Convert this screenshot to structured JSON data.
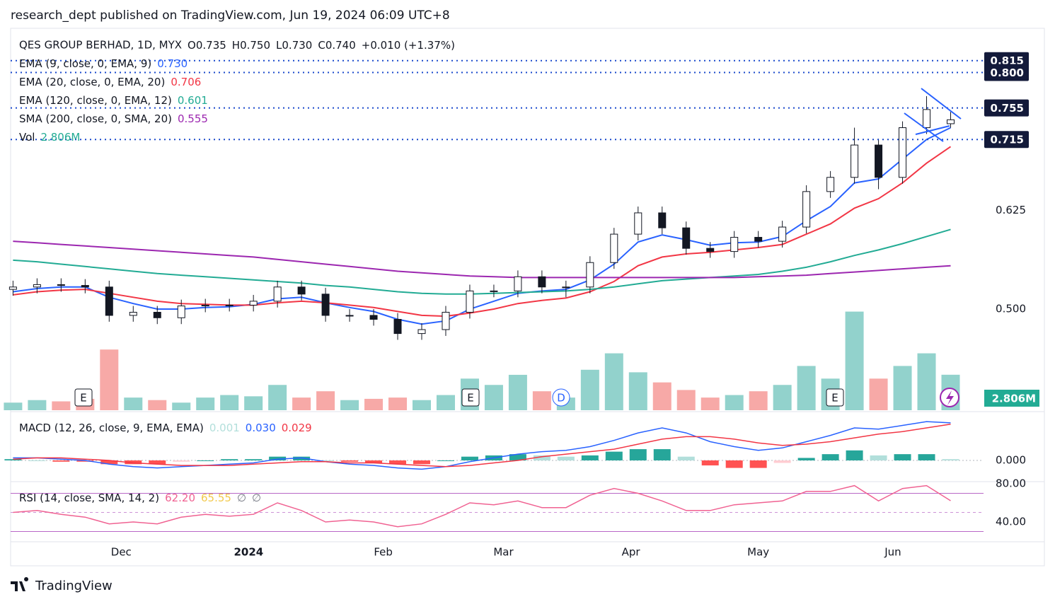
{
  "header": "research_dept published on TradingView.com, Jun 19, 2024 06:09 UTC+8",
  "footer": "TradingView",
  "chart_data": {
    "type": "candlestick",
    "symbol": "QES GROUP BERHAD, 1D, MYX",
    "ohlc_legend": [
      "O0.735",
      "H0.750",
      "L0.730",
      "C0.740",
      "+0.010 (+1.37%)"
    ],
    "open": [
      0.525,
      0.528,
      0.531,
      0.53,
      0.528,
      0.492,
      0.496,
      0.489,
      0.504,
      0.505,
      0.505,
      0.51,
      0.528,
      0.519,
      0.492,
      0.492,
      0.487,
      0.469,
      0.474,
      0.496,
      0.523,
      0.523,
      0.541,
      0.528,
      0.528,
      0.559,
      0.595,
      0.622,
      0.603,
      0.577,
      0.573,
      0.591,
      0.586,
      0.604,
      0.649,
      0.667,
      0.708,
      0.667,
      0.73,
      0.735
    ],
    "high": [
      0.536,
      0.539,
      0.539,
      0.538,
      0.536,
      0.504,
      0.504,
      0.512,
      0.513,
      0.513,
      0.518,
      0.536,
      0.536,
      0.527,
      0.5,
      0.5,
      0.495,
      0.482,
      0.504,
      0.531,
      0.531,
      0.549,
      0.549,
      0.536,
      0.567,
      0.603,
      0.63,
      0.63,
      0.611,
      0.585,
      0.599,
      0.599,
      0.612,
      0.657,
      0.675,
      0.73,
      0.716,
      0.738,
      0.77,
      0.75
    ],
    "low": [
      0.517,
      0.52,
      0.522,
      0.52,
      0.484,
      0.484,
      0.481,
      0.481,
      0.496,
      0.497,
      0.497,
      0.502,
      0.511,
      0.484,
      0.484,
      0.479,
      0.461,
      0.461,
      0.466,
      0.488,
      0.515,
      0.515,
      0.52,
      0.515,
      0.52,
      0.551,
      0.587,
      0.595,
      0.569,
      0.565,
      0.565,
      0.578,
      0.578,
      0.596,
      0.641,
      0.659,
      0.652,
      0.659,
      0.722,
      0.73
    ],
    "close": [
      0.528,
      0.531,
      0.53,
      0.528,
      0.492,
      0.496,
      0.489,
      0.504,
      0.505,
      0.505,
      0.51,
      0.528,
      0.519,
      0.492,
      0.492,
      0.487,
      0.469,
      0.474,
      0.496,
      0.523,
      0.523,
      0.541,
      0.528,
      0.528,
      0.559,
      0.595,
      0.622,
      0.603,
      0.577,
      0.573,
      0.591,
      0.586,
      0.604,
      0.649,
      0.667,
      0.708,
      0.667,
      0.73,
      0.753,
      0.74
    ],
    "up_color": "#ffffff",
    "down_color": "#131722",
    "ylim": [
      0.37,
      0.856
    ],
    "yticks": [
      0.625,
      {
        "value": 0.5,
        "label": "0.500"
      }
    ],
    "xlim": [
      -0.1,
      42.9
    ],
    "xticks": [
      {
        "value": 4.5,
        "label": "Dec"
      },
      {
        "value": 9.8,
        "label": "2024"
      },
      {
        "value": 15.4,
        "label": "Feb"
      },
      {
        "value": 20.4,
        "label": "Mar"
      },
      {
        "value": 25.7,
        "label": "Apr"
      },
      {
        "value": 31.0,
        "label": "May"
      },
      {
        "value": 36.6,
        "label": "Jun"
      }
    ],
    "series": [
      {
        "name": "EMA (9, close, 0, EMA, 9)",
        "value_label": "0.730",
        "color": "#2962ff",
        "values": [
          0.522,
          0.526,
          0.528,
          0.528,
          0.515,
          0.507,
          0.5,
          0.5,
          0.502,
          0.503,
          0.506,
          0.513,
          0.515,
          0.508,
          0.502,
          0.497,
          0.487,
          0.481,
          0.485,
          0.5,
          0.51,
          0.52,
          0.523,
          0.525,
          0.537,
          0.557,
          0.585,
          0.594,
          0.588,
          0.581,
          0.584,
          0.585,
          0.592,
          0.612,
          0.63,
          0.66,
          0.665,
          0.69,
          0.715,
          0.73
        ]
      },
      {
        "name": "EMA (20, close, 0, EMA, 20)",
        "value_label": "0.706",
        "color": "#f23645",
        "values": [
          0.518,
          0.522,
          0.524,
          0.525,
          0.52,
          0.515,
          0.51,
          0.507,
          0.506,
          0.505,
          0.505,
          0.508,
          0.51,
          0.508,
          0.505,
          0.502,
          0.497,
          0.492,
          0.491,
          0.495,
          0.5,
          0.507,
          0.511,
          0.514,
          0.522,
          0.535,
          0.555,
          0.566,
          0.57,
          0.572,
          0.575,
          0.578,
          0.582,
          0.595,
          0.608,
          0.628,
          0.64,
          0.66,
          0.685,
          0.706
        ]
      },
      {
        "name": "EMA (120, close, 0, EMA, 12)",
        "value_label": "0.601",
        "color": "#22ab94",
        "values": [
          0.562,
          0.56,
          0.557,
          0.554,
          0.551,
          0.548,
          0.545,
          0.543,
          0.541,
          0.539,
          0.537,
          0.535,
          0.533,
          0.53,
          0.528,
          0.525,
          0.522,
          0.52,
          0.519,
          0.519,
          0.52,
          0.521,
          0.522,
          0.523,
          0.525,
          0.528,
          0.532,
          0.536,
          0.538,
          0.54,
          0.542,
          0.544,
          0.548,
          0.553,
          0.56,
          0.568,
          0.575,
          0.583,
          0.592,
          0.601
        ]
      },
      {
        "name": "SMA (200, close, 0, SMA, 20)",
        "value_label": "0.555",
        "color": "#9c27b0",
        "values": [
          0.586,
          0.584,
          0.582,
          0.58,
          0.578,
          0.576,
          0.574,
          0.572,
          0.57,
          0.568,
          0.566,
          0.563,
          0.56,
          0.557,
          0.554,
          0.551,
          0.548,
          0.546,
          0.544,
          0.542,
          0.541,
          0.54,
          0.54,
          0.54,
          0.54,
          0.54,
          0.54,
          0.54,
          0.54,
          0.54,
          0.54,
          0.541,
          0.542,
          0.543,
          0.545,
          0.547,
          0.549,
          0.551,
          0.553,
          0.555
        ]
      }
    ],
    "price_lines": [
      {
        "value": 0.815,
        "label": "0.815"
      },
      {
        "value": 0.8,
        "label": "0.800"
      },
      {
        "value": 0.755,
        "label": "0.755"
      },
      {
        "value": 0.715,
        "label": "0.715"
      }
    ],
    "volume": {
      "name": "Vol",
      "value_label": "2.806M",
      "ylim": [
        0,
        8
      ],
      "up_color": "#92d2cc",
      "down_color": "#f7a9a7",
      "values": [
        0.6,
        0.8,
        0.7,
        0.9,
        4.8,
        1.0,
        0.8,
        0.6,
        1.0,
        1.2,
        1.1,
        2.0,
        1.0,
        1.5,
        0.8,
        0.9,
        1.0,
        0.8,
        1.2,
        2.5,
        2.0,
        2.8,
        1.5,
        1.0,
        3.2,
        4.5,
        3.0,
        2.2,
        1.6,
        1.0,
        1.2,
        1.5,
        2.0,
        3.5,
        2.5,
        7.8,
        2.5,
        3.5,
        4.5,
        2.806
      ]
    },
    "events": [
      "E",
      "E",
      "D",
      "E"
    ],
    "macd": {
      "name": "MACD (12, 26, close, 9, EMA, EMA)",
      "ylim": [
        -0.0164,
        0.0373
      ],
      "yticks": [
        {
          "value": 0,
          "label": "0.000"
        }
      ],
      "histogram": {
        "value_label": "0.001",
        "color": "#26a69a",
        "light_color": "#b2dfdb",
        "neg_color": "#ff5252",
        "neg_light_color": "#ffcdd2",
        "values": [
          0.001,
          0.0,
          -0.001,
          -0.001,
          -0.003,
          -0.003,
          -0.003,
          -0.001,
          0.0,
          0.001,
          0.001,
          0.003,
          0.003,
          0.0,
          -0.001,
          -0.002,
          -0.003,
          -0.003,
          0.0,
          0.003,
          0.004,
          0.005,
          0.004,
          0.003,
          0.004,
          0.007,
          0.009,
          0.009,
          0.003,
          -0.004,
          -0.006,
          -0.006,
          -0.002,
          0.002,
          0.005,
          0.008,
          0.004,
          0.005,
          0.005,
          0.001
        ]
      },
      "macd_line": {
        "value_label": "0.030",
        "color": "#2962ff",
        "values": [
          0.002,
          0.002,
          0.001,
          0.0,
          -0.003,
          -0.005,
          -0.006,
          -0.005,
          -0.004,
          -0.003,
          -0.002,
          0.001,
          0.002,
          -0.001,
          -0.003,
          -0.004,
          -0.006,
          -0.007,
          -0.005,
          -0.001,
          0.002,
          0.005,
          0.007,
          0.008,
          0.011,
          0.016,
          0.022,
          0.026,
          0.022,
          0.015,
          0.011,
          0.008,
          0.01,
          0.015,
          0.02,
          0.026,
          0.025,
          0.028,
          0.031,
          0.03
        ]
      },
      "signal_line": {
        "value_label": "0.029",
        "color": "#f23645",
        "values": [
          0.001,
          0.002,
          0.002,
          0.001,
          0.0,
          -0.002,
          -0.003,
          -0.004,
          -0.004,
          -0.004,
          -0.003,
          -0.002,
          -0.001,
          -0.001,
          -0.002,
          -0.002,
          -0.003,
          -0.004,
          -0.005,
          -0.004,
          -0.002,
          0.0,
          0.003,
          0.005,
          0.007,
          0.009,
          0.013,
          0.017,
          0.019,
          0.019,
          0.017,
          0.014,
          0.012,
          0.013,
          0.015,
          0.018,
          0.021,
          0.023,
          0.026,
          0.029
        ]
      }
    },
    "rsi": {
      "name": "RSI (14, close, SMA, 14, 2)",
      "value_label": "62.20",
      "signal_label": "65.55",
      "extra_labels": [
        "∅",
        "∅"
      ],
      "color": "#f06292",
      "band_color": "#9c27b0",
      "ylim": [
        20,
        80.7
      ],
      "yticks": [
        {
          "value": 80,
          "label": "80.00"
        },
        {
          "value": 40,
          "label": "40.00"
        }
      ],
      "bands": [
        30,
        50,
        70
      ],
      "values": [
        50,
        52,
        48,
        45,
        38,
        40,
        38,
        45,
        48,
        46,
        48,
        60,
        52,
        40,
        42,
        40,
        35,
        38,
        48,
        60,
        58,
        62,
        55,
        55,
        68,
        75,
        70,
        62,
        52,
        52,
        58,
        60,
        62,
        72,
        72,
        78,
        62,
        75,
        78,
        62.2
      ]
    }
  }
}
